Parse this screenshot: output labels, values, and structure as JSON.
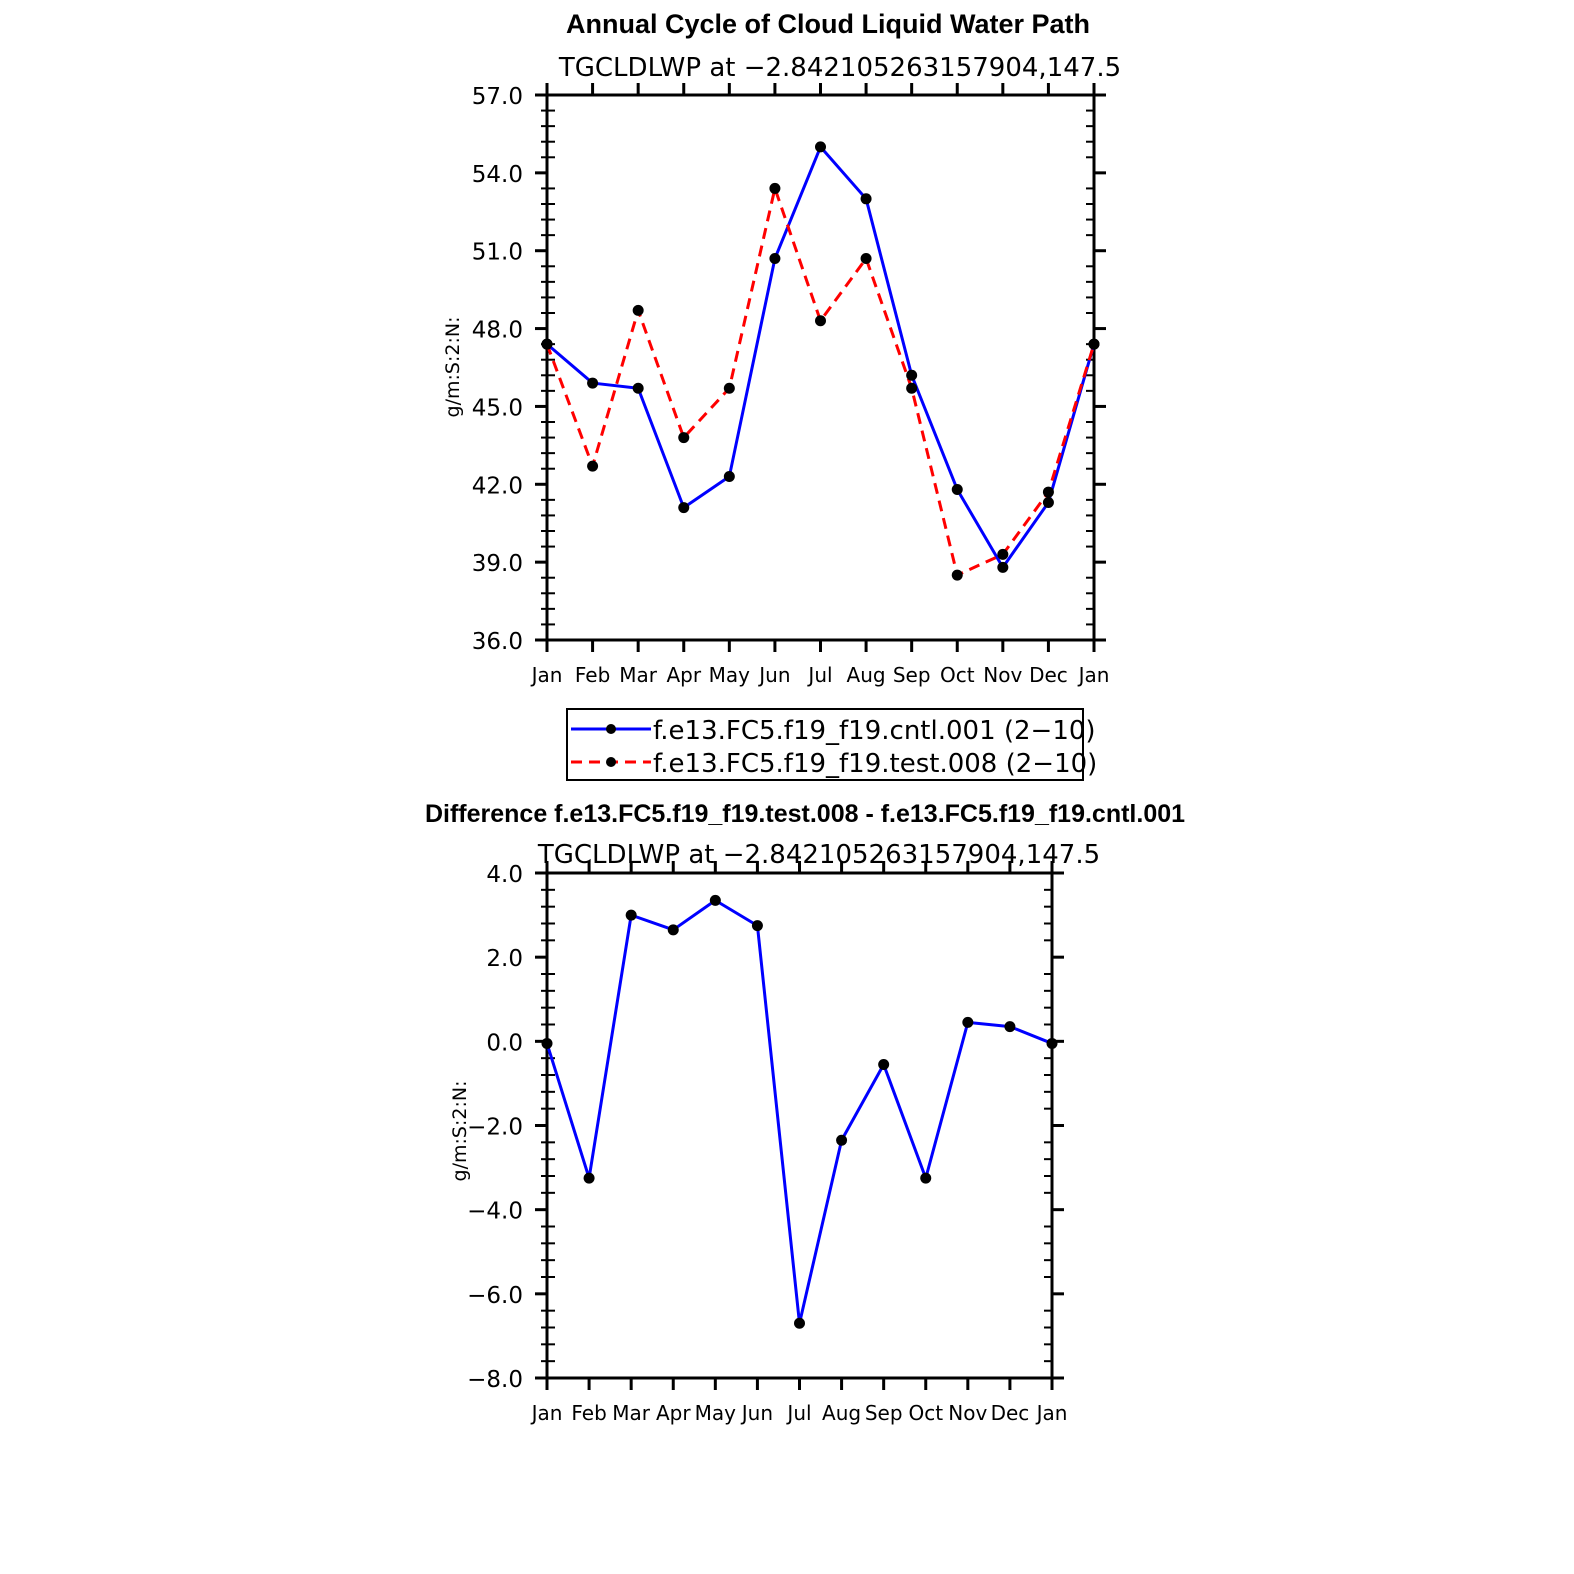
{
  "colors": {
    "control": "#0000ff",
    "test": "#ff0000",
    "difference": "#0000ff",
    "marker": "#000000",
    "axis": "#000000"
  },
  "chart_data": [
    {
      "type": "line",
      "title": "Annual Cycle of Cloud Liquid Water Path",
      "subtitle": "TGCLDLWP at −2.842105263157904,147.5",
      "xlabel": "",
      "ylabel": "g/m:S:2:N:",
      "categories": [
        "Jan",
        "Feb",
        "Mar",
        "Apr",
        "May",
        "Jun",
        "Jul",
        "Aug",
        "Sep",
        "Oct",
        "Nov",
        "Dec",
        "Jan"
      ],
      "ylim": [
        36.0,
        57.0
      ],
      "yticks": [
        36.0,
        39.0,
        42.0,
        45.0,
        48.0,
        51.0,
        54.0,
        57.0
      ],
      "ytick_labels": [
        "36.0",
        "39.0",
        "42.0",
        "45.0",
        "48.0",
        "51.0",
        "54.0",
        "57.0"
      ],
      "grid": false,
      "legend_position": "bottom",
      "series": [
        {
          "name": "f.e13.FC5.f19_f19.cntl.001 (2−10)",
          "style": "solid",
          "values": [
            47.4,
            45.9,
            45.7,
            41.1,
            42.3,
            50.7,
            55.0,
            53.0,
            46.2,
            41.8,
            38.8,
            41.3,
            47.4
          ]
        },
        {
          "name": "f.e13.FC5.f19_f19.test.008 (2−10)",
          "style": "dashed",
          "values": [
            47.4,
            42.7,
            48.7,
            43.8,
            45.7,
            53.4,
            48.3,
            50.7,
            45.7,
            38.5,
            39.3,
            41.7,
            47.4
          ]
        }
      ]
    },
    {
      "type": "line",
      "title": "Difference f.e13.FC5.f19_f19.test.008 - f.e13.FC5.f19_f19.cntl.001",
      "subtitle": "TGCLDLWP at −2.842105263157904,147.5",
      "xlabel": "",
      "ylabel": "g/m:S:2:N:",
      "categories": [
        "Jan",
        "Feb",
        "Mar",
        "Apr",
        "May",
        "Jun",
        "Jul",
        "Aug",
        "Sep",
        "Oct",
        "Nov",
        "Dec",
        "Jan"
      ],
      "ylim": [
        -8.0,
        4.0
      ],
      "yticks": [
        -8.0,
        -6.0,
        -4.0,
        -2.0,
        0.0,
        2.0,
        4.0
      ],
      "ytick_labels": [
        "−8.0",
        "−6.0",
        "−4.0",
        "−2.0",
        "0.0",
        "2.0",
        "4.0"
      ],
      "grid": false,
      "series": [
        {
          "name": "Difference",
          "style": "solid",
          "values": [
            -0.05,
            -3.25,
            3.0,
            2.65,
            3.35,
            2.75,
            -6.7,
            -2.35,
            -0.55,
            -3.25,
            0.45,
            0.35,
            -0.05
          ]
        }
      ]
    }
  ]
}
